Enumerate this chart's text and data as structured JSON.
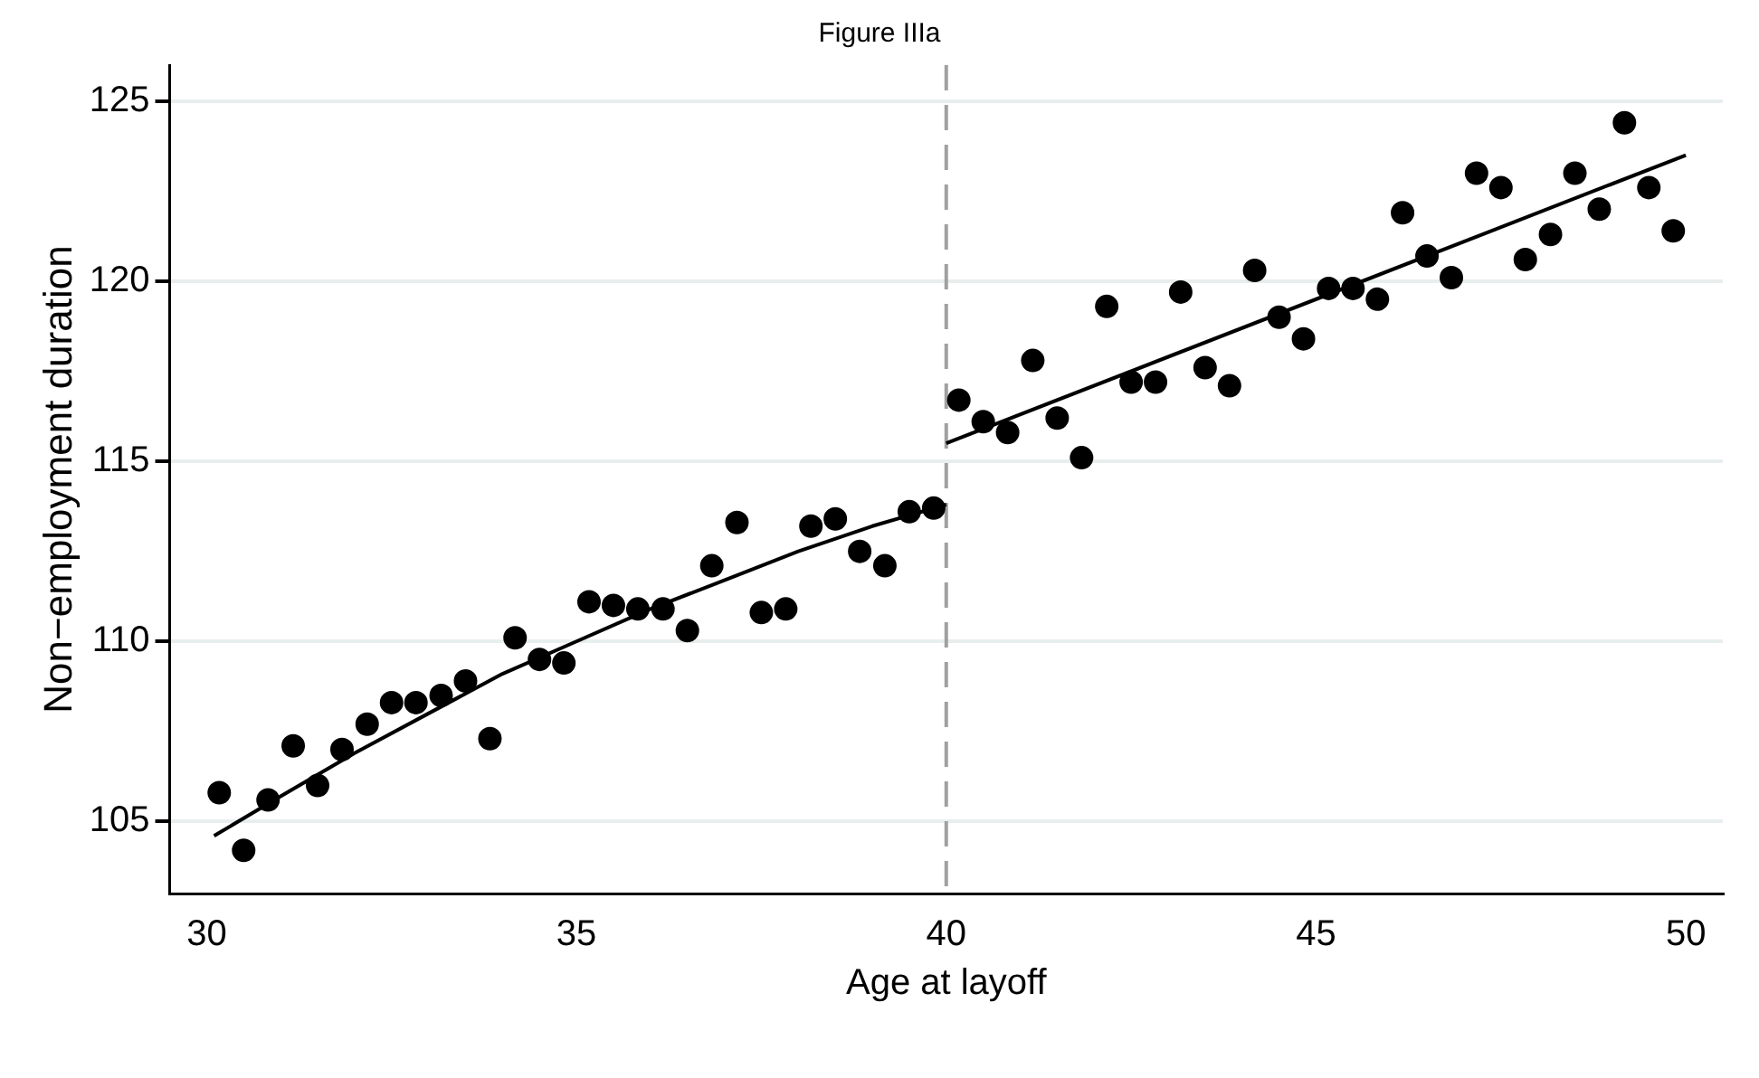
{
  "chart_data": {
    "type": "scatter",
    "title": "Figure IIIa",
    "xlabel": "Age at layoff",
    "ylabel": "Non−employment duration",
    "xlim": [
      29.5,
      50.5
    ],
    "xticks": [
      30,
      35,
      40,
      45,
      50
    ],
    "ylim": [
      103,
      126
    ],
    "yticks": [
      105,
      110,
      115,
      120,
      125
    ],
    "grid": "y",
    "legend": false,
    "marker": "circle",
    "ref_lines": [
      {
        "axis": "x",
        "value": 40,
        "color": "#a0a0a0",
        "line_style": "dashed"
      }
    ],
    "series": [
      {
        "color": "#000000",
        "x": [
          30.17,
          30.5,
          30.83,
          31.17,
          31.5,
          31.83,
          32.17,
          32.5,
          32.83,
          33.17,
          33.5,
          33.83,
          34.17,
          34.5,
          34.83,
          35.17,
          35.5,
          35.83,
          36.17,
          36.5,
          36.83,
          37.17,
          37.5,
          37.83,
          38.17,
          38.5,
          38.83,
          39.17,
          39.5,
          39.83
        ],
        "values": [
          105.8,
          104.2,
          105.6,
          107.1,
          106.0,
          107.0,
          107.7,
          108.3,
          108.3,
          108.5,
          108.9,
          107.3,
          110.1,
          109.5,
          109.4,
          111.1,
          111.0,
          110.9,
          110.9,
          110.3,
          112.1,
          113.3,
          110.8,
          110.9,
          113.2,
          113.4,
          112.5,
          112.1,
          113.6,
          113.7
        ]
      },
      {
        "color": "#000000",
        "x": [
          40.17,
          40.5,
          40.83,
          41.17,
          41.5,
          41.83,
          42.17,
          42.5,
          42.83,
          43.17,
          43.5,
          43.83,
          44.17,
          44.5,
          44.83,
          45.17,
          45.5,
          45.83,
          46.17,
          46.5,
          46.83,
          47.17,
          47.5,
          47.83,
          48.17,
          48.5,
          48.83,
          49.17,
          49.5,
          49.83
        ],
        "values": [
          116.7,
          116.1,
          115.8,
          117.8,
          116.2,
          115.1,
          119.3,
          117.2,
          117.2,
          119.7,
          117.6,
          117.1,
          120.3,
          119.0,
          118.4,
          119.8,
          119.8,
          119.5,
          121.9,
          120.7,
          120.1,
          123.0,
          122.6,
          120.6,
          121.3,
          123.0,
          122.0,
          124.4,
          122.6,
          121.4
        ]
      },
      {
        "type": "line",
        "color": "#000000",
        "marker": "none",
        "x": [
          30.1,
          31,
          32,
          33,
          34,
          35,
          36,
          37,
          38,
          39,
          40
        ],
        "values": [
          104.6,
          105.7,
          106.9,
          108.0,
          109.1,
          110.0,
          110.9,
          111.7,
          112.5,
          113.2,
          113.8
        ]
      },
      {
        "type": "line",
        "color": "#000000",
        "marker": "none",
        "x": [
          40,
          50
        ],
        "values": [
          115.5,
          123.5
        ]
      }
    ]
  }
}
